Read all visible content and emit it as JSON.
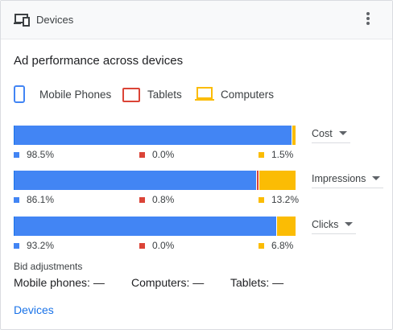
{
  "header": {
    "title": "Devices",
    "icon": "devices-icon",
    "more_icon": "more-vert-icon"
  },
  "card": {
    "subtitle": "Ad performance across devices"
  },
  "legend": [
    {
      "label": "Mobile Phones",
      "color": "#4285f4",
      "icon": "mobile-phone-icon"
    },
    {
      "label": "Tablets",
      "color": "#db4437",
      "icon": "tablet-icon"
    },
    {
      "label": "Computers",
      "color": "#fbbc04",
      "icon": "computer-icon"
    }
  ],
  "chart_data": {
    "type": "bar",
    "stacked": true,
    "orientation": "horizontal",
    "categories": [
      "Cost",
      "Impressions",
      "Clicks"
    ],
    "series": [
      {
        "name": "Mobile Phones",
        "values": [
          98.5,
          86.1,
          93.2
        ]
      },
      {
        "name": "Tablets",
        "values": [
          0.0,
          0.8,
          0.0
        ]
      },
      {
        "name": "Computers",
        "values": [
          1.5,
          13.2,
          6.8
        ]
      }
    ],
    "unit": "%"
  },
  "rows": [
    {
      "metric": "Cost",
      "mobile": "98.5%",
      "tablets": "0.0%",
      "computers": "1.5%"
    },
    {
      "metric": "Impressions",
      "mobile": "86.1%",
      "tablets": "0.8%",
      "computers": "13.2%"
    },
    {
      "metric": "Clicks",
      "mobile": "93.2%",
      "tablets": "0.0%",
      "computers": "6.8%"
    }
  ],
  "bid_adjustments": {
    "title": "Bid adjustments",
    "mobile": "Mobile phones: —",
    "computers": "Computers: —",
    "tablets": "Tablets: —"
  },
  "footer": {
    "link": "Devices"
  }
}
